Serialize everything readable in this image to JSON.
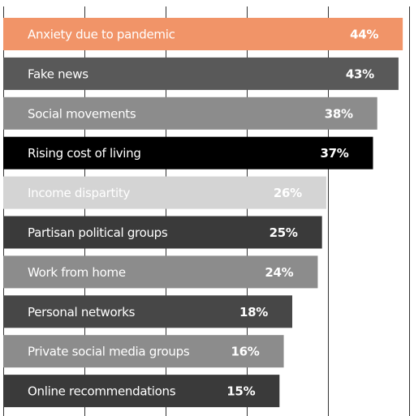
{
  "chart_data": {
    "type": "bar",
    "orientation": "horizontal",
    "categories": [
      "Anxiety due to pandemic",
      "Fake news",
      "Social movements",
      "Rising cost of living",
      "Income dispartity",
      "Partisan political groups",
      "Work from home",
      "Personal networks",
      "Private social media groups",
      "Online recommendations"
    ],
    "values": [
      44,
      43,
      38,
      37,
      26,
      25,
      24,
      18,
      16,
      15
    ],
    "value_labels": [
      "44%",
      "43%",
      "38%",
      "37%",
      "26%",
      "25%",
      "24%",
      "18%",
      "16%",
      "15%"
    ],
    "colors": [
      "#f19468",
      "#595959",
      "#8c8c8c",
      "#000000",
      "#d4d4d4",
      "#3a3a3a",
      "#8c8c8c",
      "#474747",
      "#8c8c8c",
      "#3a3a3a"
    ],
    "xlim": [
      -50,
      45.5
    ]
  }
}
